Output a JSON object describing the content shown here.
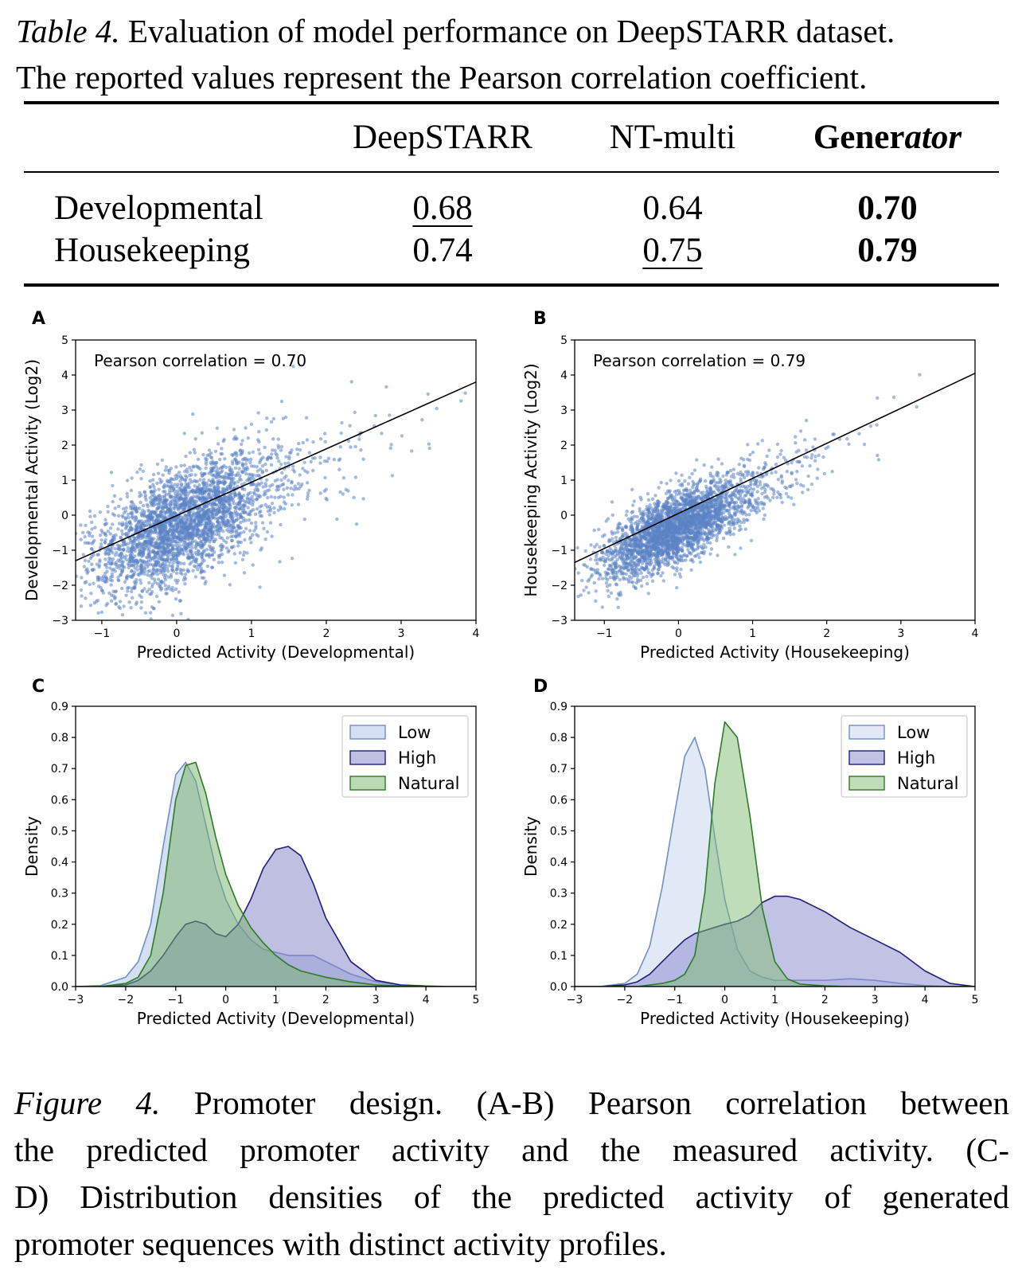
{
  "table": {
    "caption_lead": "Table 4.",
    "caption_lines": [
      " Evaluation of model performance on DeepSTARR dataset.",
      "The reported values represent the Pearson correlation coefficient."
    ],
    "columns": [
      "DeepSTARR",
      "NT-multi"
    ],
    "gen_col_bold": "Gener",
    "gen_col_italic": "ator",
    "rows": [
      {
        "label": "Developmental",
        "values": [
          "0.68",
          "0.64",
          "0.70"
        ]
      },
      {
        "label": "Housekeeping",
        "values": [
          "0.74",
          "0.75",
          "0.79"
        ]
      }
    ]
  },
  "figure_caption": {
    "lead": "Figure 4.",
    "lines": [
      " Promoter design.  (A-B) Pearson correlation between",
      "the predicted promoter activity and the measured activity.  (C-",
      "D) Distribution densities of the predicted activity of generated",
      "promoter sequences with distinct activity profiles."
    ]
  },
  "chart_data": [
    {
      "panel": "A",
      "type": "scatter",
      "xlabel": "Predicted Activity (Developmental)",
      "ylabel": "Developmental Activity (Log2)",
      "xlim": [
        -1.35,
        4
      ],
      "ylim": [
        -3,
        5
      ],
      "xticks": [
        -1,
        0,
        1,
        2,
        3,
        4
      ],
      "yticks": [
        -3,
        -2,
        -1,
        0,
        1,
        2,
        3,
        4,
        5
      ],
      "annotation": "Pearson correlation = 0.70",
      "pearson_r": 0.7,
      "fit_line": {
        "x": [
          -1.35,
          4
        ],
        "y": [
          -1.3,
          3.8
        ]
      },
      "point_cloud": {
        "center": [
          0.0,
          -0.3
        ],
        "x_sd": 0.55,
        "y_sd": 0.95,
        "n": 3000
      },
      "color": "#5b84c4",
      "grid": false
    },
    {
      "panel": "B",
      "type": "scatter",
      "xlabel": "Predicted Activity (Housekeeping)",
      "ylabel": "Housekeeping Activity (Log2)",
      "xlim": [
        -1.4,
        4
      ],
      "ylim": [
        -3,
        5
      ],
      "xticks": [
        -1,
        0,
        1,
        2,
        3,
        4
      ],
      "yticks": [
        -3,
        -2,
        -1,
        0,
        1,
        2,
        3,
        4,
        5
      ],
      "annotation": "Pearson correlation = 0.79",
      "pearson_r": 0.79,
      "fit_line": {
        "x": [
          -1.4,
          4
        ],
        "y": [
          -1.35,
          4.05
        ]
      },
      "point_cloud": {
        "center": [
          -0.1,
          -0.4
        ],
        "x_sd": 0.45,
        "y_sd": 0.7,
        "n": 3000
      },
      "color": "#5b84c4",
      "grid": false
    },
    {
      "panel": "C",
      "type": "area",
      "xlabel": "Predicted Activity (Developmental)",
      "ylabel": "Density",
      "xlim": [
        -3,
        5
      ],
      "ylim": [
        0,
        0.9
      ],
      "xticks": [
        -3,
        -2,
        -1,
        0,
        1,
        2,
        3,
        4,
        5
      ],
      "yticks": [
        0.0,
        0.1,
        0.2,
        0.3,
        0.4,
        0.5,
        0.6,
        0.7,
        0.8,
        0.9
      ],
      "legend": "top-right",
      "x": [
        -3,
        -2.5,
        -2,
        -1.75,
        -1.5,
        -1.25,
        -1,
        -0.8,
        -0.6,
        -0.4,
        -0.2,
        0,
        0.25,
        0.5,
        0.75,
        1,
        1.25,
        1.5,
        1.75,
        2,
        2.5,
        3,
        3.5,
        4,
        4.5,
        5
      ],
      "series": [
        {
          "name": "Low",
          "color": "#a9bfe4",
          "edge": "#6f8fc8",
          "values": [
            0,
            0.003,
            0.03,
            0.08,
            0.2,
            0.45,
            0.68,
            0.72,
            0.66,
            0.52,
            0.38,
            0.28,
            0.2,
            0.15,
            0.12,
            0.11,
            0.1,
            0.1,
            0.1,
            0.08,
            0.04,
            0.015,
            0.005,
            0.002,
            0,
            0
          ]
        },
        {
          "name": "High",
          "color": "#7f7fc6",
          "edge": "#1f1f7a",
          "values": [
            0,
            0,
            0.005,
            0.02,
            0.05,
            0.1,
            0.16,
            0.2,
            0.21,
            0.2,
            0.17,
            0.16,
            0.2,
            0.28,
            0.38,
            0.44,
            0.45,
            0.42,
            0.33,
            0.22,
            0.08,
            0.02,
            0.005,
            0.001,
            0,
            0
          ]
        },
        {
          "name": "Natural",
          "color": "#78b46a",
          "edge": "#2d7a2a",
          "values": [
            0,
            0,
            0.01,
            0.03,
            0.1,
            0.3,
            0.6,
            0.71,
            0.72,
            0.62,
            0.48,
            0.36,
            0.26,
            0.19,
            0.14,
            0.1,
            0.07,
            0.05,
            0.04,
            0.03,
            0.015,
            0.005,
            0.002,
            0,
            0,
            0
          ]
        }
      ]
    },
    {
      "panel": "D",
      "type": "area",
      "xlabel": "Predicted Activity (Housekeeping)",
      "ylabel": "Density",
      "xlim": [
        -3,
        5
      ],
      "ylim": [
        0,
        0.9
      ],
      "xticks": [
        -3,
        -2,
        -1,
        0,
        1,
        2,
        3,
        4,
        5
      ],
      "yticks": [
        0.0,
        0.1,
        0.2,
        0.3,
        0.4,
        0.5,
        0.6,
        0.7,
        0.8,
        0.9
      ],
      "legend": "top-right",
      "x": [
        -3,
        -2.5,
        -2,
        -1.75,
        -1.5,
        -1.25,
        -1,
        -0.8,
        -0.6,
        -0.4,
        -0.2,
        0,
        0.25,
        0.5,
        0.75,
        1,
        1.25,
        1.5,
        2,
        2.5,
        3,
        3.5,
        4,
        4.5,
        5
      ],
      "series": [
        {
          "name": "Low",
          "color": "#c3d2ee",
          "edge": "#6f8fc8",
          "values": [
            0,
            0,
            0.01,
            0.04,
            0.13,
            0.32,
            0.56,
            0.74,
            0.8,
            0.7,
            0.48,
            0.28,
            0.12,
            0.05,
            0.03,
            0.02,
            0.02,
            0.02,
            0.02,
            0.025,
            0.02,
            0.01,
            0.003,
            0,
            0
          ]
        },
        {
          "name": "High",
          "color": "#8686cc",
          "edge": "#1f1f7a",
          "values": [
            0,
            0,
            0.005,
            0.015,
            0.04,
            0.08,
            0.12,
            0.15,
            0.17,
            0.18,
            0.19,
            0.2,
            0.21,
            0.23,
            0.27,
            0.29,
            0.29,
            0.28,
            0.24,
            0.19,
            0.15,
            0.11,
            0.05,
            0.01,
            0
          ]
        },
        {
          "name": "Natural",
          "color": "#7fbc71",
          "edge": "#2d7a2a",
          "values": [
            0,
            0,
            0,
            0,
            0.005,
            0.01,
            0.02,
            0.04,
            0.1,
            0.3,
            0.65,
            0.85,
            0.8,
            0.55,
            0.25,
            0.08,
            0.025,
            0.008,
            0.002,
            0,
            0,
            0,
            0,
            0,
            0
          ]
        }
      ]
    }
  ]
}
